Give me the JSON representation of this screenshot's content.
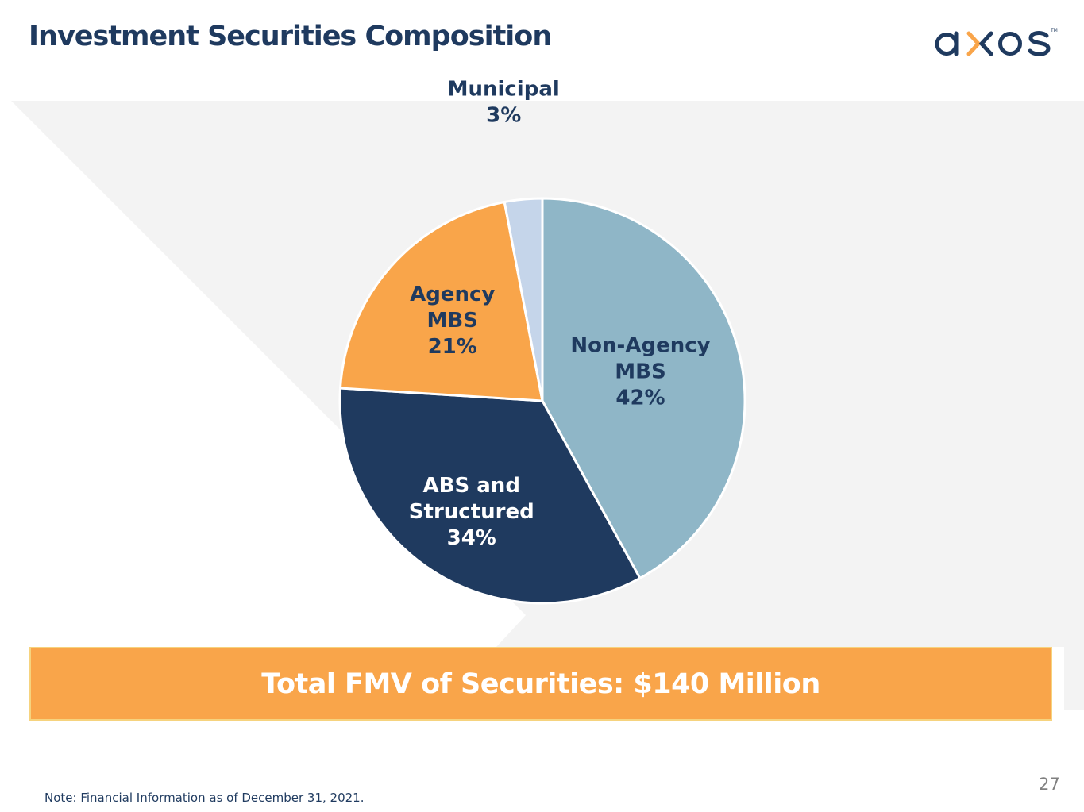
{
  "header": {
    "title": "Investment Securities Composition",
    "logo_text": "axos",
    "logo_trademark": "TM"
  },
  "colors": {
    "title": "#1f3a5f",
    "accent_orange": "#f9a54a",
    "band_gray": "#f3f3f3"
  },
  "chart_data": {
    "type": "pie",
    "title": "Investment Securities Composition",
    "start_angle": "12 o'clock, clockwise",
    "slices": [
      {
        "label_lines": [
          "Non-Agency",
          "MBS"
        ],
        "value": 42,
        "value_label": "42%",
        "color": "#8fb6c7",
        "text_color": "#1f3a5f"
      },
      {
        "label_lines": [
          "ABS and",
          "Structured"
        ],
        "value": 34,
        "value_label": "34%",
        "color": "#1f3a5f",
        "text_color": "#ffffff"
      },
      {
        "label_lines": [
          "Agency",
          "MBS"
        ],
        "value": 21,
        "value_label": "21%",
        "color": "#f9a54a",
        "text_color": "#1f3a5f"
      },
      {
        "label_lines": [
          "Municipal"
        ],
        "value": 3,
        "value_label": "3%",
        "color": "#c5d5ea",
        "text_color": "#1f3a5f",
        "label_outside": true
      }
    ]
  },
  "summary": {
    "total_text": "Total FMV of Securities: $140 Million"
  },
  "footer": {
    "note": "Note: Financial Information as of December 31, 2021.",
    "page_number": "27"
  }
}
